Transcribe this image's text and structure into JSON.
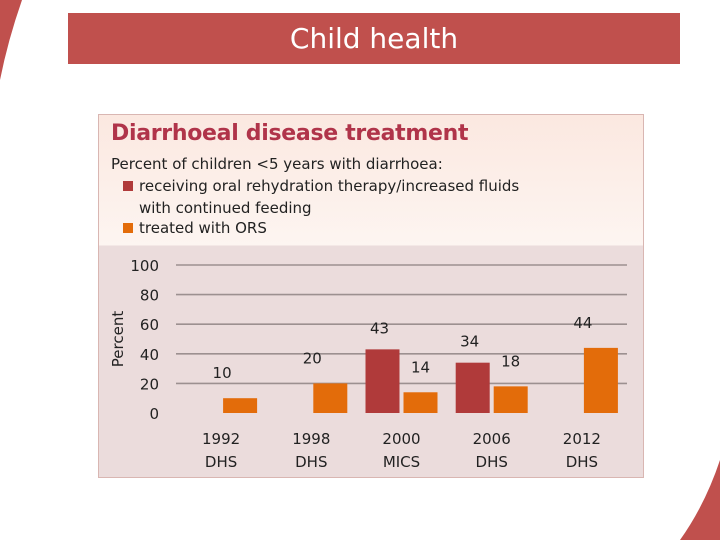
{
  "slide": {
    "title": "Child health"
  },
  "colors": {
    "banner": "#c0504d",
    "series_ort": "#b03a3a",
    "series_ors": "#e36c0a",
    "title_text": "#b0344a"
  },
  "chart_data": {
    "type": "bar",
    "title": "Diarrhoeal disease treatment",
    "subtitle": "Percent of children <5 years with diarrhoea:",
    "ylabel": "Percent",
    "xlabel": "",
    "ylim": [
      0,
      100
    ],
    "yticks": [
      0,
      20,
      40,
      60,
      80,
      100
    ],
    "grid": true,
    "categories": [
      {
        "line1": "1992",
        "line2": "DHS"
      },
      {
        "line1": "1998",
        "line2": "DHS"
      },
      {
        "line1": "2000",
        "line2": "MICS"
      },
      {
        "line1": "2006",
        "line2": "DHS"
      },
      {
        "line1": "2012",
        "line2": "DHS"
      }
    ],
    "series": [
      {
        "name": "receiving oral rehydration therapy/increased fluids with continued feeding",
        "legend_lines": [
          "receiving oral rehydration therapy/increased fluids",
          "with continued feeding"
        ],
        "color": "#b03a3a",
        "values": [
          null,
          null,
          43,
          34,
          null
        ]
      },
      {
        "name": "treated with ORS",
        "legend_lines": [
          "treated with ORS"
        ],
        "color": "#e36c0a",
        "values": [
          10,
          20,
          14,
          18,
          44
        ]
      }
    ]
  }
}
